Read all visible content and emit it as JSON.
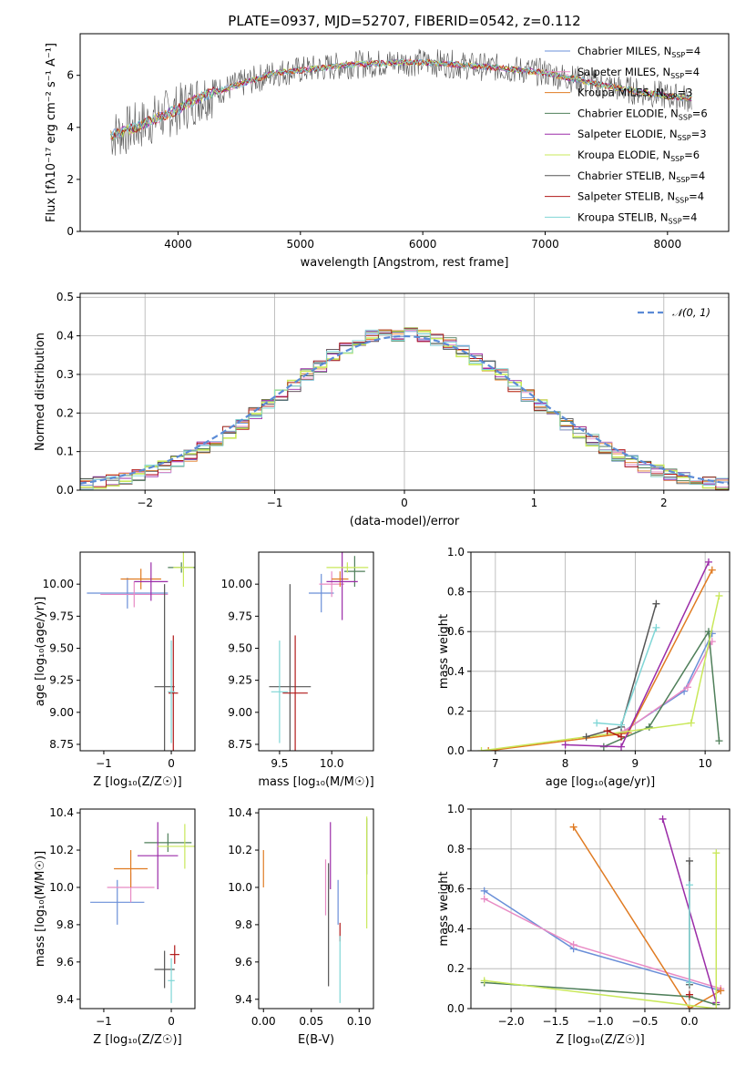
{
  "figure": {
    "title": "PLATE=0937, MJD=52707, FIBERID=0542, z=0.112"
  },
  "chart_data": [
    {
      "id": "spectrum",
      "type": "line",
      "title": "PLATE=0937, MJD=52707, FIBERID=0542, z=0.112",
      "xlabel": "wavelength [Angstrom, rest frame]",
      "ylabel": "Flux [fλ10⁻¹⁷ erg cm⁻² s⁻¹ A⁻¹]",
      "xlim": [
        3200,
        8500
      ],
      "ylim": [
        0,
        7.6
      ],
      "xticks": [
        4000,
        5000,
        6000,
        7000,
        8000
      ],
      "yticks": [
        0,
        2,
        4,
        6
      ],
      "grid": false,
      "legend_position": "upper-right",
      "continuum": {
        "x": [
          3450,
          3600,
          3800,
          4000,
          4200,
          4400,
          4600,
          4800,
          5000,
          5200,
          5400,
          5600,
          5800,
          6000,
          6200,
          6400,
          6600,
          6800,
          7000,
          7200,
          7400,
          7600,
          7800,
          8000,
          8200
        ],
        "y": [
          3.7,
          3.9,
          4.3,
          4.7,
          5.2,
          5.5,
          5.8,
          6.1,
          6.2,
          6.3,
          6.4,
          6.45,
          6.5,
          6.5,
          6.45,
          6.35,
          6.3,
          6.2,
          6.1,
          5.9,
          5.7,
          5.5,
          5.35,
          5.2,
          5.1
        ]
      },
      "series": [
        {
          "name": "Chabrier MILES, N",
          "sub": "SSP",
          "suffix": "=4",
          "color": "#6a8fd8"
        },
        {
          "name": "Salpeter MILES, N",
          "sub": "SSP",
          "suffix": "=4",
          "color": "#e88ac4"
        },
        {
          "name": "Kroupa MILES, N",
          "sub": "SSP",
          "suffix": "=3",
          "color": "#e07b22"
        },
        {
          "name": "Chabrier ELODIE, N",
          "sub": "SSP",
          "suffix": "=6",
          "color": "#4f7f5a"
        },
        {
          "name": "Salpeter ELODIE, N",
          "sub": "SSP",
          "suffix": "=3",
          "color": "#9b2ca8"
        },
        {
          "name": "Kroupa ELODIE, N",
          "sub": "SSP",
          "suffix": "=6",
          "color": "#c9e85a"
        },
        {
          "name": "Chabrier STELIB, N",
          "sub": "SSP",
          "suffix": "=4",
          "color": "#555555"
        },
        {
          "name": "Salpeter STELIB, N",
          "sub": "SSP",
          "suffix": "=4",
          "color": "#b01818"
        },
        {
          "name": "Kroupa STELIB, N",
          "sub": "SSP",
          "suffix": "=4",
          "color": "#7fd6d6"
        }
      ]
    },
    {
      "id": "residuals",
      "type": "step",
      "xlabel": "(data-model)/error",
      "ylabel": "Normed distribution",
      "xlim": [
        -2.5,
        2.5
      ],
      "ylim": [
        0,
        0.51
      ],
      "xticks": [
        -2,
        -1,
        0,
        1,
        2
      ],
      "yticks": [
        0.0,
        0.1,
        0.2,
        0.3,
        0.4,
        0.5
      ],
      "grid": true,
      "legend": "𝒩(0, 1)",
      "legend_position": "upper-right",
      "gaussian": {
        "mean": 0,
        "sigma": 1,
        "color": "#5b8bd6"
      },
      "bin_edges": [
        -2.5,
        -2.4,
        -2.3,
        -2.2,
        -2.1,
        -2.0,
        -1.9,
        -1.8,
        -1.7,
        -1.6,
        -1.5,
        -1.4,
        -1.3,
        -1.2,
        -1.1,
        -1.0,
        -0.9,
        -0.8,
        -0.7,
        -0.6,
        -0.5,
        -0.4,
        -0.3,
        -0.2,
        -0.1,
        0.0,
        0.1,
        0.2,
        0.3,
        0.4,
        0.5,
        0.6,
        0.7,
        0.8,
        0.9,
        1.0,
        1.1,
        1.2,
        1.3,
        1.4,
        1.5,
        1.6,
        1.7,
        1.8,
        1.9,
        2.0,
        2.1,
        2.2,
        2.3,
        2.4,
        2.5
      ],
      "counts": [
        0.017,
        0.02,
        0.025,
        0.03,
        0.04,
        0.05,
        0.06,
        0.075,
        0.09,
        0.11,
        0.13,
        0.15,
        0.17,
        0.2,
        0.22,
        0.245,
        0.27,
        0.3,
        0.32,
        0.35,
        0.37,
        0.39,
        0.4,
        0.41,
        0.4,
        0.405,
        0.4,
        0.39,
        0.38,
        0.36,
        0.34,
        0.32,
        0.3,
        0.27,
        0.245,
        0.22,
        0.195,
        0.17,
        0.15,
        0.13,
        0.11,
        0.09,
        0.075,
        0.06,
        0.05,
        0.04,
        0.032,
        0.026,
        0.02,
        0.016
      ]
    },
    {
      "id": "age-vs-Z",
      "type": "errorbar",
      "xlabel": "Z [log₁₀(Z/Z☉)]",
      "ylabel": "age  [log₁₀(age/yr)]",
      "xlim": [
        -1.35,
        0.35
      ],
      "ylim": [
        8.7,
        10.25
      ],
      "xticks": [
        -1,
        0
      ],
      "yticks": [
        8.75,
        9.0,
        9.25,
        9.5,
        9.75,
        10.0
      ],
      "grid": false,
      "points": [
        {
          "x": -0.65,
          "y": 9.93,
          "xerr": 0.6,
          "yerr": 0.12,
          "color": "#6a8fd8"
        },
        {
          "x": -0.55,
          "y": 9.92,
          "xerr": 0.5,
          "yerr": 0.1,
          "color": "#e88ac4"
        },
        {
          "x": -0.45,
          "y": 10.04,
          "xerr": 0.3,
          "yerr": 0.08,
          "color": "#e07b22"
        },
        {
          "x": 0.15,
          "y": 10.13,
          "xerr": 0.2,
          "yerr": 0.04,
          "color": "#4f7f5a"
        },
        {
          "x": -0.3,
          "y": 10.02,
          "xerr": 0.25,
          "yerr": 0.15,
          "color": "#9b2ca8"
        },
        {
          "x": 0.18,
          "y": 10.13,
          "xerr": 0.15,
          "yerr": 0.15,
          "color": "#c9e85a"
        },
        {
          "x": -0.1,
          "y": 9.2,
          "xerr": 0.15,
          "yerr": 0.8,
          "color": "#555555"
        },
        {
          "x": 0.03,
          "y": 9.15,
          "xerr": 0.07,
          "yerr": 0.45,
          "color": "#b01818"
        },
        {
          "x": 0.0,
          "y": 9.16,
          "xerr": 0.05,
          "yerr": 0.4,
          "color": "#7fd6d6"
        }
      ]
    },
    {
      "id": "age-vs-mass",
      "type": "errorbar",
      "xlabel": "mass [log₁₀(M/M☉)]",
      "ylabel": "",
      "xlim": [
        9.3,
        10.4
      ],
      "ylim": [
        8.7,
        10.25
      ],
      "xticks": [
        9.5,
        10.0
      ],
      "yticks": [
        8.75,
        9.0,
        9.25,
        9.5,
        9.75,
        10.0
      ],
      "grid": false,
      "points": [
        {
          "x": 9.9,
          "y": 9.93,
          "xerr": 0.12,
          "yerr": 0.15,
          "color": "#6a8fd8"
        },
        {
          "x": 10.0,
          "y": 10.0,
          "xerr": 0.12,
          "yerr": 0.1,
          "color": "#e88ac4"
        },
        {
          "x": 10.08,
          "y": 10.04,
          "xerr": 0.08,
          "yerr": 0.06,
          "color": "#e07b22"
        },
        {
          "x": 10.22,
          "y": 10.1,
          "xerr": 0.1,
          "yerr": 0.12,
          "color": "#4f7f5a"
        },
        {
          "x": 10.1,
          "y": 10.02,
          "xerr": 0.15,
          "yerr": 0.3,
          "color": "#9b2ca8"
        },
        {
          "x": 10.15,
          "y": 10.13,
          "xerr": 0.2,
          "yerr": 0.04,
          "color": "#c9e85a"
        },
        {
          "x": 9.6,
          "y": 9.2,
          "xerr": 0.2,
          "yerr": 0.8,
          "color": "#555555"
        },
        {
          "x": 9.65,
          "y": 9.15,
          "xerr": 0.12,
          "yerr": 0.45,
          "color": "#b01818"
        },
        {
          "x": 9.5,
          "y": 9.16,
          "xerr": 0.08,
          "yerr": 0.4,
          "color": "#7fd6d6"
        }
      ]
    },
    {
      "id": "weight-vs-age",
      "type": "line",
      "xlabel": "age  [log₁₀(age/yr)]",
      "ylabel": "mass weight",
      "xlim": [
        6.65,
        10.35
      ],
      "ylim": [
        0,
        1.0
      ],
      "xticks": [
        7,
        8,
        9,
        10
      ],
      "yticks": [
        0.0,
        0.2,
        0.4,
        0.6,
        0.8,
        1.0
      ],
      "grid": true,
      "series": [
        {
          "color": "#6a8fd8",
          "x": [
            8.8,
            9.7,
            10.1
          ],
          "y": [
            0.09,
            0.3,
            0.59
          ]
        },
        {
          "color": "#e88ac4",
          "x": [
            8.85,
            9.75,
            10.1
          ],
          "y": [
            0.1,
            0.32,
            0.55
          ]
        },
        {
          "color": "#e07b22",
          "x": [
            6.9,
            8.9,
            10.1
          ],
          "y": [
            0.0,
            0.09,
            0.91
          ]
        },
        {
          "color": "#4f7f5a",
          "x": [
            8.55,
            9.2,
            10.05,
            10.2
          ],
          "y": [
            0.02,
            0.12,
            0.6,
            0.05
          ]
        },
        {
          "color": "#9b2ca8",
          "x": [
            8.0,
            8.8,
            10.05
          ],
          "y": [
            0.03,
            0.02,
            0.95
          ]
        },
        {
          "color": "#c9e85a",
          "x": [
            6.8,
            9.8,
            10.2
          ],
          "y": [
            0.0,
            0.14,
            0.78
          ]
        },
        {
          "color": "#555555",
          "x": [
            8.3,
            8.8,
            9.3
          ],
          "y": [
            0.07,
            0.12,
            0.74
          ]
        },
        {
          "color": "#b01818",
          "x": [
            8.6,
            8.8
          ],
          "y": [
            0.1,
            0.07
          ]
        },
        {
          "color": "#7fd6d6",
          "x": [
            8.45,
            8.8,
            9.3
          ],
          "y": [
            0.14,
            0.13,
            0.62
          ]
        }
      ]
    },
    {
      "id": "mass-vs-Z",
      "type": "errorbar",
      "xlabel": "Z [log₁₀(Z/Z☉)]",
      "ylabel": "mass [log₁₀(M/M☉)]",
      "xlim": [
        -1.35,
        0.35
      ],
      "ylim": [
        9.35,
        10.42
      ],
      "xticks": [
        -1,
        0
      ],
      "yticks": [
        9.4,
        9.6,
        9.8,
        10.0,
        10.2,
        10.4
      ],
      "grid": false,
      "points": [
        {
          "x": -0.8,
          "y": 9.92,
          "xerr": 0.4,
          "yerr": 0.12,
          "color": "#6a8fd8"
        },
        {
          "x": -0.6,
          "y": 10.0,
          "xerr": 0.35,
          "yerr": 0.08,
          "color": "#e88ac4"
        },
        {
          "x": -0.6,
          "y": 10.1,
          "xerr": 0.25,
          "yerr": 0.1,
          "color": "#e07b22"
        },
        {
          "x": -0.05,
          "y": 10.24,
          "xerr": 0.35,
          "yerr": 0.05,
          "color": "#4f7f5a"
        },
        {
          "x": -0.2,
          "y": 10.17,
          "xerr": 0.3,
          "yerr": 0.18,
          "color": "#9b2ca8"
        },
        {
          "x": 0.2,
          "y": 10.22,
          "xerr": 0.4,
          "yerr": 0.12,
          "color": "#c9e85a"
        },
        {
          "x": -0.1,
          "y": 9.56,
          "xerr": 0.15,
          "yerr": 0.1,
          "color": "#555555"
        },
        {
          "x": 0.05,
          "y": 9.64,
          "xerr": 0.07,
          "yerr": 0.05,
          "color": "#b01818"
        },
        {
          "x": 0.0,
          "y": 9.5,
          "xerr": 0.05,
          "yerr": 0.12,
          "color": "#7fd6d6"
        }
      ]
    },
    {
      "id": "mass-vs-EBV",
      "type": "errorbar",
      "xlabel": "E(B-V)",
      "ylabel": "",
      "xlim": [
        -0.005,
        0.115
      ],
      "ylim": [
        9.35,
        10.42
      ],
      "xticks": [
        0.0,
        0.05,
        0.1
      ],
      "tick_labels": [
        "0.00",
        "0.05",
        "0.10"
      ],
      "yticks": [
        9.4,
        9.6,
        9.8,
        10.0,
        10.2,
        10.4
      ],
      "grid": false,
      "points": [
        {
          "x": 0.078,
          "y": 9.92,
          "xerr": 0,
          "yerr": 0.12,
          "color": "#6a8fd8"
        },
        {
          "x": 0.065,
          "y": 10.0,
          "xerr": 0,
          "yerr": 0.15,
          "color": "#e88ac4"
        },
        {
          "x": 0.0,
          "y": 10.1,
          "xerr": 0,
          "yerr": 0.1,
          "color": "#e07b22"
        },
        {
          "x": 0.108,
          "y": 10.22,
          "xerr": 0,
          "yerr": 0.15,
          "color": "#4f7f5a"
        },
        {
          "x": 0.07,
          "y": 10.17,
          "xerr": 0,
          "yerr": 0.18,
          "color": "#9b2ca8"
        },
        {
          "x": 0.108,
          "y": 10.08,
          "xerr": 0,
          "yerr": 0.3,
          "color": "#c9e85a"
        },
        {
          "x": 0.068,
          "y": 9.8,
          "xerr": 0,
          "yerr": 0.33,
          "color": "#555555"
        },
        {
          "x": 0.08,
          "y": 9.76,
          "xerr": 0,
          "yerr": 0.05,
          "color": "#b01818"
        },
        {
          "x": 0.08,
          "y": 9.56,
          "xerr": 0,
          "yerr": 0.18,
          "color": "#7fd6d6"
        }
      ]
    },
    {
      "id": "weight-vs-Z",
      "type": "line",
      "xlabel": "Z [log₁₀(Z/Z☉)]",
      "ylabel": "mass weight",
      "xlim": [
        -2.45,
        0.45
      ],
      "ylim": [
        0,
        1.0
      ],
      "xticks": [
        -2.0,
        -1.5,
        -1.0,
        -0.5,
        0.0
      ],
      "yticks": [
        0.0,
        0.2,
        0.4,
        0.6,
        0.8,
        1.0
      ],
      "grid": true,
      "series": [
        {
          "color": "#6a8fd8",
          "x": [
            -2.3,
            -1.3,
            0.35
          ],
          "y": [
            0.59,
            0.3,
            0.09
          ]
        },
        {
          "color": "#e88ac4",
          "x": [
            -2.3,
            -1.3,
            0.35
          ],
          "y": [
            0.55,
            0.32,
            0.1
          ]
        },
        {
          "color": "#e07b22",
          "x": [
            -1.3,
            0.0,
            0.35
          ],
          "y": [
            0.91,
            0.0,
            0.09
          ]
        },
        {
          "color": "#4f7f5a",
          "x": [
            -2.3,
            0.0,
            0.3
          ],
          "y": [
            0.13,
            0.06,
            0.02
          ]
        },
        {
          "color": "#9b2ca8",
          "x": [
            -0.3,
            0.3
          ],
          "y": [
            0.95,
            0.03
          ]
        },
        {
          "color": "#c9e85a",
          "x": [
            -2.3,
            0.3,
            0.3
          ],
          "y": [
            0.14,
            0.0,
            0.78
          ]
        },
        {
          "color": "#555555",
          "x": [
            0.0,
            0.0
          ],
          "y": [
            0.74,
            0.12
          ]
        },
        {
          "color": "#b01818",
          "x": [
            0.0
          ],
          "y": [
            0.07
          ]
        },
        {
          "color": "#7fd6d6",
          "x": [
            0.0,
            0.0
          ],
          "y": [
            0.62,
            0.13
          ]
        }
      ]
    }
  ]
}
